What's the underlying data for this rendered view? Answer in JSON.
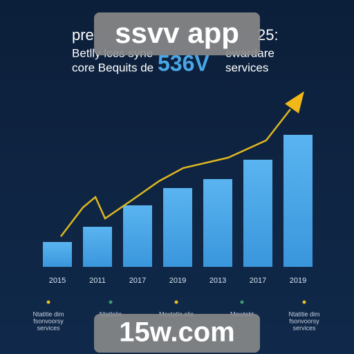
{
  "chart_data": {
    "type": "bar",
    "categories": [
      "2015",
      "2011",
      "2017",
      "2019",
      "2013",
      "2017",
      "2019"
    ],
    "values": [
      36,
      58,
      89,
      114,
      127,
      155,
      191
    ],
    "color": "#4aa6e6",
    "ylim": [
      0,
      200
    ]
  },
  "header": {
    "line1_left": "pre",
    "line1_right": "25:",
    "line2_left": "Betlly lces syne",
    "line2_right": "ewardare",
    "line3_left": "core Bequits de",
    "highlight": "536V",
    "line3_right": "services"
  },
  "legend": [
    {
      "color": "#e8c020",
      "lines": [
        "Ntatitie dim",
        "fsonvoorsy",
        "services"
      ]
    },
    {
      "color": "#3aa070",
      "lines": [
        "Ntatlelie"
      ]
    },
    {
      "color": "#e8c020",
      "lines": [
        "Mextatle olic"
      ]
    },
    {
      "color": "#3aa070",
      "lines": [
        "Mewtabt"
      ]
    },
    {
      "color": "#e8c020",
      "lines": [
        "Ntatitie dim",
        "fsonvoorsy",
        "services"
      ]
    }
  ],
  "watermarks": [
    "ssvv app",
    "15w.com"
  ]
}
